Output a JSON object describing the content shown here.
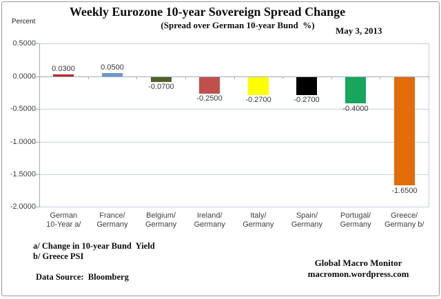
{
  "header": {
    "title": "Weekly Eurozone 10-year Sovereign Spread Change",
    "subtitle": "(Spread over German 10-year Bund  %)",
    "date": "May 3, 2013",
    "y_axis_unit": "Percent"
  },
  "chart_data": {
    "type": "bar",
    "title": "Weekly Eurozone 10-year Sovereign Spread Change",
    "subtitle": "(Spread over German 10-year Bund %)",
    "categories": [
      "German\n10-Year a/",
      "France/\nGermany",
      "Belgium/\nGermany",
      "Ireland/\nGermany",
      "Italy/\nGermany",
      "Spain/\nGermany",
      "Portugal/\nGermany",
      "Greece/\nGermany b/"
    ],
    "values": [
      0.03,
      0.05,
      -0.07,
      -0.25,
      -0.27,
      -0.27,
      -0.4,
      -1.65
    ],
    "value_labels": [
      "0.0300",
      "0.0500",
      "-0.0700",
      "-0.2500",
      "-0.2700",
      "-0.2700",
      "-0.4000",
      "-1.6500"
    ],
    "bar_colors": [
      "#c0272c",
      "#6e96cc",
      "#4f6228",
      "#c0504d",
      "#ffff00",
      "#000000",
      "#17a65c",
      "#e26b0a"
    ],
    "ylabel": "Percent",
    "ylim": [
      -2.0,
      0.5
    ],
    "yticks": [
      0.5,
      0.0,
      -0.5,
      -1.0,
      -1.5,
      -2.0
    ],
    "ytick_labels": [
      "0.5000",
      "0.0000",
      "-0.5000",
      "-1.0000",
      "-1.5000",
      "-2.0000"
    ],
    "grid": true,
    "legend": false
  },
  "footnotes": {
    "a": "a/ Change in 10-year Bund  Yield",
    "b": "b/ Greece PSI"
  },
  "source": "Data Source:  Bloomberg",
  "branding": {
    "name": "Global Macro Monitor",
    "url": "macromon.wordpress.com"
  }
}
